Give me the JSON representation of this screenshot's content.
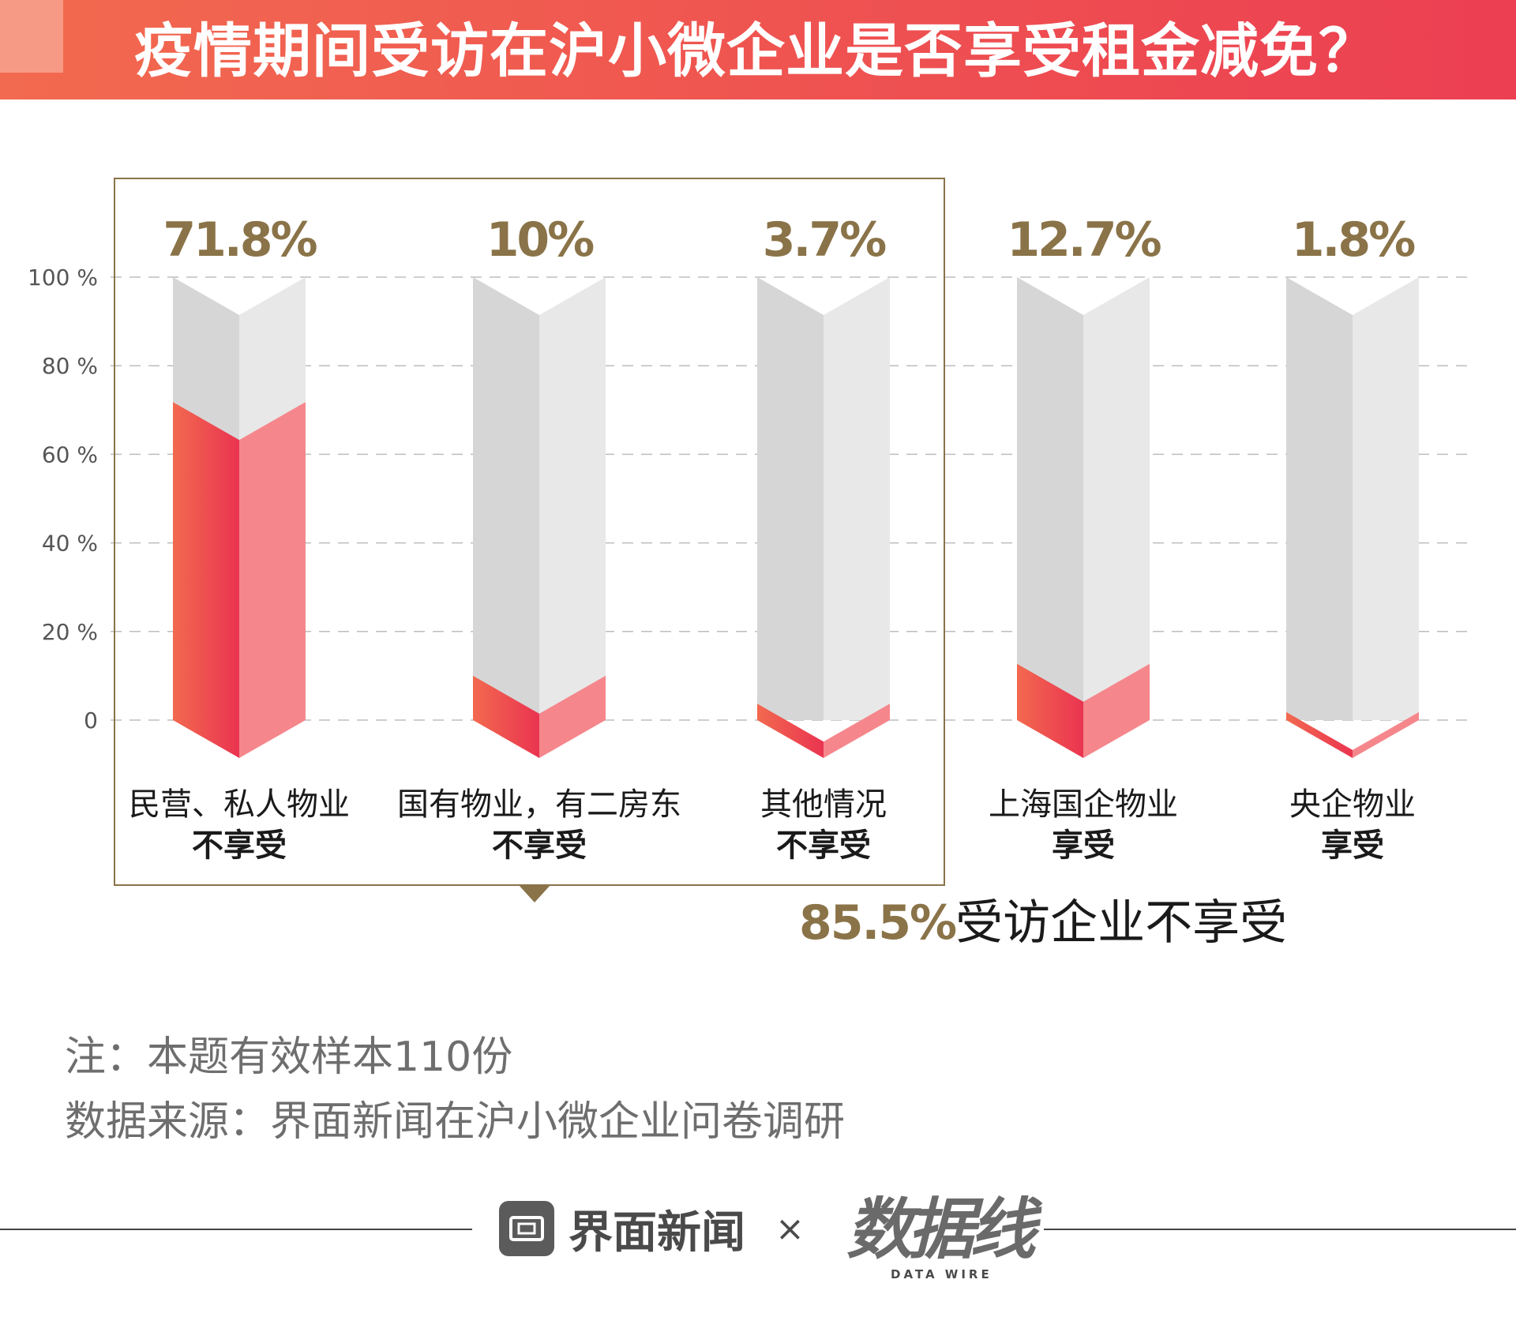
{
  "title": "疫情期间受访在沪小微企业是否享受租金减免？",
  "chart_data": {
    "type": "bar",
    "categories": [
      {
        "name": "民营、私人物业",
        "status": "不享受"
      },
      {
        "name": "国有物业，有二房东",
        "status": "不享受"
      },
      {
        "name": "其他情况",
        "status": "不享受"
      },
      {
        "name": "上海国企物业",
        "status": "享受"
      },
      {
        "name": "央企物业",
        "status": "享受"
      }
    ],
    "values": [
      71.8,
      10,
      3.7,
      12.7,
      1.8
    ],
    "value_labels": [
      "71.8%",
      "10%",
      "3.7%",
      "12.7%",
      "1.8%"
    ],
    "yticks": [
      "100 %",
      "80 %",
      "60 %",
      "40 %",
      "20 %",
      "0"
    ],
    "ylim": [
      0,
      100
    ],
    "grid": true
  },
  "highlight": {
    "value": "85.5%",
    "text": "受访企业不享受"
  },
  "notes": {
    "sample": "注：本题有效样本110份",
    "source": "数据来源：界面新闻在沪小微企业问卷调研"
  },
  "footer": {
    "brand": "界面新闻",
    "times": "×",
    "logo_main": "数据线",
    "logo_sub": "DATA WIRE"
  },
  "colors": {
    "fill_dark": "#ee4656",
    "fill_light": "#f5878c",
    "track_dark": "#d6d6d6",
    "track_light": "#e8e8e8",
    "accent": "#8a7348"
  }
}
